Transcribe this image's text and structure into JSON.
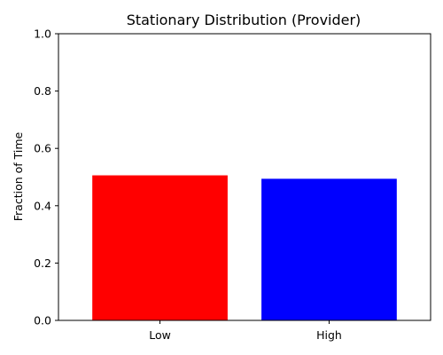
{
  "chart_data": {
    "type": "bar",
    "title": "Stationary Distribution (Provider)",
    "xlabel": "",
    "ylabel": "Fraction of Time",
    "categories": [
      "Low",
      "High"
    ],
    "values": [
      0.506,
      0.494
    ],
    "colors": [
      "#ff0000",
      "#0000ff"
    ],
    "ylim": [
      0,
      1.0
    ],
    "yticks": [
      "0.0",
      "0.2",
      "0.4",
      "0.6",
      "0.8",
      "1.0"
    ],
    "ytick_values": [
      0.0,
      0.2,
      0.4,
      0.6,
      0.8,
      1.0
    ],
    "grid": false,
    "legend": "none"
  }
}
